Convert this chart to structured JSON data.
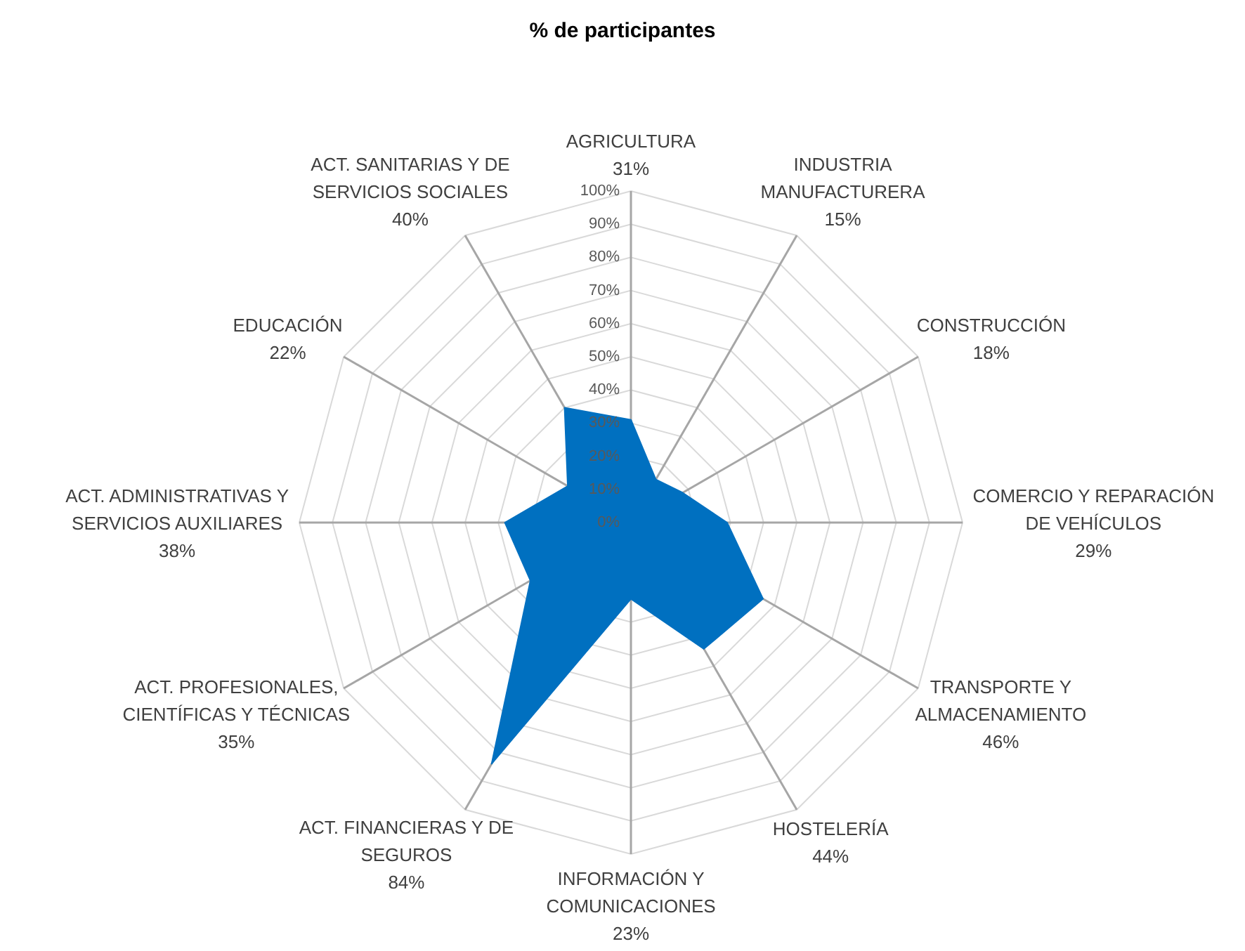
{
  "chart_data": {
    "type": "radar",
    "title": "% de participantes",
    "categories": [
      "AGRICULTURA\n31%",
      "INDUSTRIA MANUFACTURERA\n15%",
      "CONSTRUCCIÓN\n18%",
      "COMERCIO Y REPARACIÓN DE VEHÍCULOS\n29%",
      "TRANSPORTE Y ALMACENAMIENTO\n46%",
      "HOSTELERÍA\n44%",
      "INFORMACIÓN Y COMUNICACIONES\n23%",
      "ACT. FINANCIERAS Y DE SEGUROS\n84%",
      "ACT. PROFESIONALES, CIENTÍFICAS Y TÉCNICAS\n35%",
      "ACT. ADMINISTRATIVAS Y SERVICIOS AUXILIARES\n38%",
      "EDUCACIÓN\n22%",
      "ACT. SANITARIAS Y DE SERVICIOS SOCIALES\n40%"
    ],
    "series": [
      {
        "color": "#0070c0",
        "values": [
          31,
          15,
          18,
          29,
          46,
          44,
          23,
          84,
          35,
          38,
          22,
          40
        ]
      }
    ],
    "ylim": [
      0,
      100
    ],
    "yticks": [
      {
        "value": 0,
        "label": "0%"
      },
      {
        "value": 10,
        "label": "10%"
      },
      {
        "value": 20,
        "label": "20%"
      },
      {
        "value": 30,
        "label": "30%"
      },
      {
        "value": 40,
        "label": "40%"
      },
      {
        "value": 50,
        "label": "50%"
      },
      {
        "value": 60,
        "label": "60%"
      },
      {
        "value": 70,
        "label": "70%"
      },
      {
        "value": 80,
        "label": "80%"
      },
      {
        "value": 90,
        "label": "90%"
      },
      {
        "value": 100,
        "label": "100%"
      }
    ],
    "grid": true
  }
}
